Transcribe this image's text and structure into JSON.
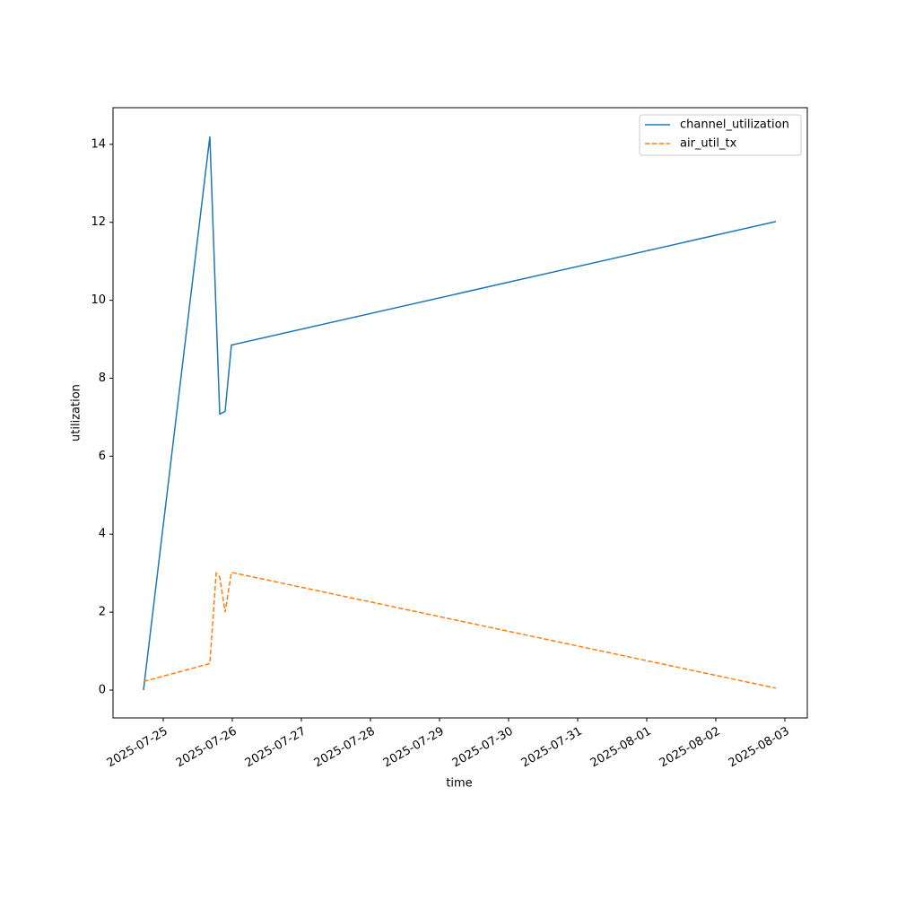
{
  "chart_data": {
    "type": "line",
    "x_label": "time",
    "y_label": "utilization",
    "x": [
      20293.714,
      20294.675,
      20294.766,
      20294.818,
      20294.896,
      20294.987,
      20302.87
    ],
    "series": [
      {
        "name": "channel_utilization",
        "color": "#1f77b4",
        "dash": "solid",
        "values": [
          0,
          14.2,
          9.67,
          7.08,
          7.15,
          8.85,
          12.02
        ]
      },
      {
        "name": "air_util_tx",
        "color": "#ff7f0e",
        "dash": "dashed",
        "values": [
          0.22,
          0.68,
          3.0,
          2.9,
          2.0,
          3.02,
          0.05
        ]
      }
    ],
    "xlim": [
      20293.273,
      20303.325
    ],
    "xticks": [
      {
        "value": 20294,
        "label": "2025-07-25"
      },
      {
        "value": 20295,
        "label": "2025-07-26"
      },
      {
        "value": 20296,
        "label": "2025-07-27"
      },
      {
        "value": 20297,
        "label": "2025-07-28"
      },
      {
        "value": 20298,
        "label": "2025-07-29"
      },
      {
        "value": 20299,
        "label": "2025-07-30"
      },
      {
        "value": 20300,
        "label": "2025-07-31"
      },
      {
        "value": 20301,
        "label": "2025-08-01"
      },
      {
        "value": 20302,
        "label": "2025-08-02"
      },
      {
        "value": 20303,
        "label": "2025-08-03"
      }
    ],
    "ylim": [
      -0.714,
      14.94
    ],
    "yticks": [
      0,
      2,
      4,
      6,
      8,
      10,
      12,
      14
    ],
    "grid": false,
    "legend": "upper right"
  }
}
